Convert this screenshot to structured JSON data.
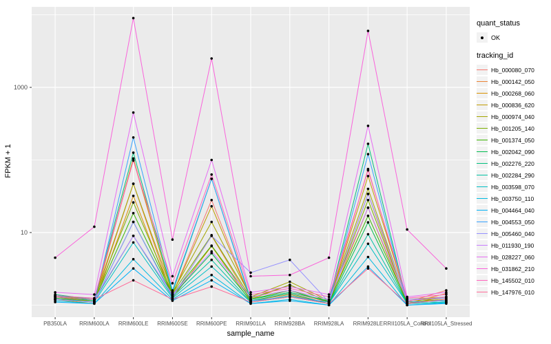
{
  "chart_data": {
    "type": "line",
    "title": "",
    "xlabel": "sample_name",
    "ylabel": "FPKM + 1",
    "y_scale": "log10",
    "y_tick_labels": [
      "10",
      "1000"
    ],
    "y_tick_values": [
      10,
      1000
    ],
    "y_minor_values": [
      1,
      100,
      10000
    ],
    "ylim": [
      0.68,
      13000
    ],
    "grid": true,
    "panel_bg": "#EBEBEB",
    "grid_color": "#FFFFFF",
    "point_color": "#000000",
    "axis_text_color": "#4D4D4D",
    "categories": [
      "PB350LA",
      "RRIM600LA",
      "RRIM600LE",
      "RRIM600SE",
      "RRIM600PE",
      "RRIM901LA",
      "RRIM928BA",
      "RRIM928LA",
      "RRIM928LE",
      "RRII105LA_Control",
      "RRII105LA_Stressed"
    ],
    "legend": {
      "position": "right",
      "quant_status_title": "quant_status",
      "quant_status_items": [
        {
          "label": "OK",
          "marker": "point"
        }
      ],
      "tracking_id_title": "tracking_id"
    },
    "series": [
      {
        "name": "Hb_000080_070",
        "color": "#F8766D",
        "values": [
          1.3,
          1.1,
          100,
          1.4,
          28,
          1.2,
          1.5,
          1.1,
          75,
          1.1,
          1.6
        ]
      },
      {
        "name": "Hb_000142_050",
        "color": "#EB8335",
        "values": [
          1.25,
          1.1,
          47,
          1.3,
          9,
          1.15,
          1.4,
          1.05,
          34,
          1.05,
          1.45
        ]
      },
      {
        "name": "Hb_000268_060",
        "color": "#D89000",
        "values": [
          1.2,
          1.05,
          32,
          1.25,
          6.5,
          1.1,
          1.3,
          1.05,
          22,
          1.05,
          1.3
        ]
      },
      {
        "name": "Hb_000836_620",
        "color": "#C09B00",
        "values": [
          1.2,
          1.15,
          105,
          1.4,
          23,
          1.2,
          1.9,
          1.1,
          60,
          1.2,
          1.3
        ]
      },
      {
        "name": "Hb_000974_040",
        "color": "#A3A500",
        "values": [
          1.3,
          1.2,
          47,
          1.5,
          14,
          1.3,
          2.1,
          1.15,
          40,
          1.15,
          1.25
        ]
      },
      {
        "name": "Hb_001205_140",
        "color": "#7CAE00",
        "values": [
          1.35,
          1.2,
          26,
          1.45,
          9.2,
          1.25,
          1.9,
          1.1,
          28,
          1.1,
          1.2
        ]
      },
      {
        "name": "Hb_001374_050",
        "color": "#39B600",
        "values": [
          1.3,
          1.15,
          18.5,
          1.4,
          6.6,
          1.2,
          1.6,
          1.1,
          17,
          1.1,
          1.15
        ]
      },
      {
        "name": "Hb_002042_090",
        "color": "#00BB4E",
        "values": [
          1.25,
          1.1,
          14,
          1.35,
          5.2,
          1.15,
          1.45,
          1.05,
          13.8,
          1.05,
          1.1
        ]
      },
      {
        "name": "Hb_002276_220",
        "color": "#00BF7D",
        "values": [
          1.4,
          1.2,
          126,
          1.5,
          55,
          1.2,
          1.5,
          1.15,
          167,
          1.1,
          1.15
        ]
      },
      {
        "name": "Hb_002284_290",
        "color": "#00C1A3",
        "values": [
          1.35,
          1.15,
          9,
          1.3,
          4.2,
          1.1,
          1.35,
          1.05,
          9.5,
          1.05,
          1.1
        ]
      },
      {
        "name": "Hb_003598_070",
        "color": "#00BFC4",
        "values": [
          1.2,
          1.1,
          7.3,
          1.25,
          3.4,
          1.1,
          1.3,
          1.05,
          7,
          1.05,
          1.1
        ]
      },
      {
        "name": "Hb_003750_110",
        "color": "#00BAE0",
        "values": [
          1.15,
          1.05,
          4.3,
          1.2,
          2.6,
          1.05,
          1.2,
          1.0,
          4.6,
          1.0,
          1.08
        ]
      },
      {
        "name": "Hb_004464_040",
        "color": "#00B0F6",
        "values": [
          1.1,
          1.05,
          3.2,
          1.15,
          2.2,
          1.05,
          1.15,
          1.0,
          3.4,
          1.0,
          1.05
        ]
      },
      {
        "name": "Hb_004553_050",
        "color": "#35A2FF",
        "values": [
          1.2,
          1.1,
          204,
          1.6,
          55,
          1.15,
          1.3,
          1.1,
          120,
          1.1,
          1.15
        ]
      },
      {
        "name": "Hb_005460_040",
        "color": "#9590FF",
        "values": [
          1.2,
          1.1,
          14,
          1.3,
          9,
          2.8,
          4.2,
          1.1,
          34,
          1.2,
          1.25
        ]
      },
      {
        "name": "Hb_011930_190",
        "color": "#C77CFF",
        "values": [
          1.3,
          1.2,
          9,
          1.4,
          5.5,
          1.3,
          1.6,
          1.2,
          22,
          1.15,
          1.3
        ]
      },
      {
        "name": "Hb_028227_060",
        "color": "#E76BF3",
        "values": [
          1.5,
          1.4,
          450,
          2.5,
          100,
          1.5,
          1.8,
          1.4,
          295,
          1.3,
          1.5
        ]
      },
      {
        "name": "Hb_031862_210",
        "color": "#FA62DB",
        "values": [
          4.5,
          12,
          9000,
          8,
          2500,
          2.5,
          2.6,
          4.5,
          6000,
          11,
          3.2
        ]
      },
      {
        "name": "Hb_145502_010",
        "color": "#FF62BC",
        "values": [
          1.35,
          1.25,
          98,
          2.0,
          63,
          1.4,
          1.7,
          1.3,
          72,
          1.25,
          1.4
        ]
      },
      {
        "name": "Hb_147976_010",
        "color": "#FF6A98",
        "values": [
          1.3,
          1.2,
          2.2,
          1.2,
          1.8,
          1.1,
          1.3,
          1.05,
          3.2,
          1.05,
          1.2
        ]
      }
    ]
  }
}
